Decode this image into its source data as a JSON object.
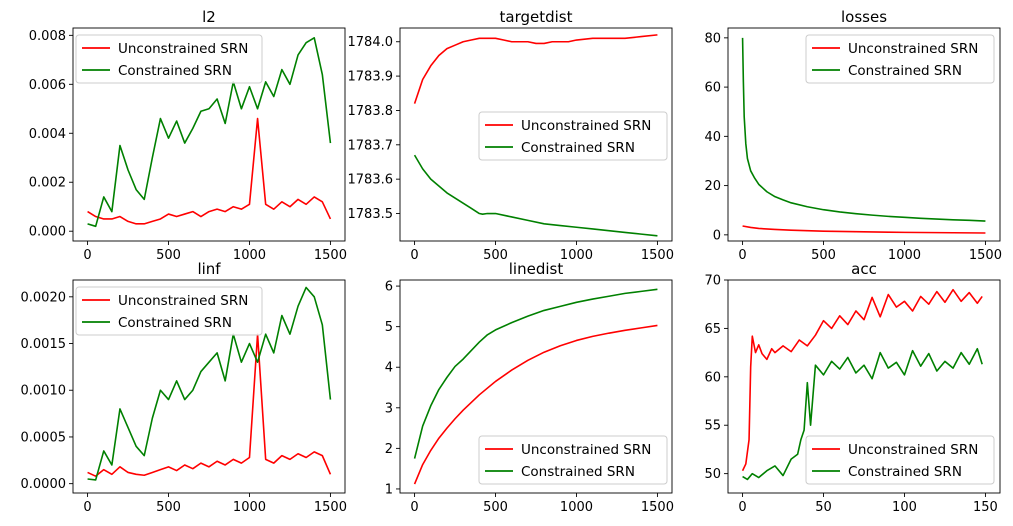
{
  "colors": {
    "unconstrained": "#ff0000",
    "constrained": "#008000"
  },
  "chart_data": [
    {
      "id": "l2",
      "type": "line",
      "title": "l2",
      "xlabel": "",
      "ylabel": "",
      "xlim": [
        -90,
        1590
      ],
      "ylim": [
        -0.0004,
        0.0083
      ],
      "xticks": [
        0,
        500,
        1000,
        1500
      ],
      "yticks": [
        0.0,
        0.002,
        0.004,
        0.006,
        0.008
      ],
      "ytick_labels": [
        "0.000",
        "0.002",
        "0.004",
        "0.006",
        "0.008"
      ],
      "legend": "upper left",
      "grid": false,
      "series": [
        {
          "name": "Unconstrained SRN",
          "color": "#ff0000",
          "x": [
            0,
            50,
            100,
            150,
            200,
            250,
            300,
            350,
            400,
            450,
            500,
            550,
            600,
            650,
            700,
            750,
            800,
            850,
            900,
            950,
            1000,
            1050,
            1100,
            1150,
            1200,
            1250,
            1300,
            1350,
            1400,
            1450,
            1500
          ],
          "y": [
            0.0008,
            0.0006,
            0.0005,
            0.0005,
            0.0006,
            0.0004,
            0.0003,
            0.0003,
            0.0004,
            0.0005,
            0.0007,
            0.0006,
            0.0007,
            0.0008,
            0.0006,
            0.0008,
            0.0009,
            0.0008,
            0.001,
            0.0009,
            0.0011,
            0.0046,
            0.0011,
            0.0009,
            0.0012,
            0.001,
            0.0013,
            0.0011,
            0.0014,
            0.0012,
            0.0005
          ]
        },
        {
          "name": "Constrained SRN",
          "color": "#008000",
          "x": [
            0,
            50,
            100,
            150,
            200,
            250,
            300,
            350,
            400,
            450,
            500,
            550,
            600,
            650,
            700,
            750,
            800,
            850,
            900,
            950,
            1000,
            1050,
            1100,
            1150,
            1200,
            1250,
            1300,
            1350,
            1400,
            1450,
            1500
          ],
          "y": [
            0.0003,
            0.0002,
            0.0014,
            0.0008,
            0.0035,
            0.0025,
            0.0017,
            0.0013,
            0.003,
            0.0046,
            0.0038,
            0.0045,
            0.0036,
            0.0042,
            0.0049,
            0.005,
            0.0054,
            0.0044,
            0.0061,
            0.005,
            0.0059,
            0.005,
            0.0061,
            0.0055,
            0.0066,
            0.006,
            0.0072,
            0.0077,
            0.0079,
            0.0064,
            0.0036
          ]
        }
      ]
    },
    {
      "id": "targetdist",
      "type": "line",
      "title": "targetdist",
      "xlabel": "",
      "ylabel": "",
      "xlim": [
        -90,
        1590
      ],
      "ylim": [
        1783.42,
        1784.04
      ],
      "xticks": [
        0,
        500,
        1000,
        1500
      ],
      "yticks": [
        1783.5,
        1783.6,
        1783.7,
        1783.8,
        1783.9,
        1784.0
      ],
      "ytick_labels": [
        "1783.5",
        "1783.6",
        "1783.7",
        "1783.8",
        "1783.9",
        "1784.0"
      ],
      "legend": "center right",
      "grid": false,
      "series": [
        {
          "name": "Unconstrained SRN",
          "color": "#ff0000",
          "x": [
            0,
            50,
            100,
            150,
            200,
            250,
            300,
            350,
            400,
            450,
            500,
            550,
            600,
            650,
            700,
            750,
            800,
            850,
            900,
            950,
            1000,
            1100,
            1200,
            1300,
            1400,
            1500
          ],
          "y": [
            1783.82,
            1783.89,
            1783.93,
            1783.96,
            1783.98,
            1783.99,
            1784.0,
            1784.005,
            1784.01,
            1784.01,
            1784.01,
            1784.005,
            1784.0,
            1784.0,
            1784.0,
            1783.995,
            1783.995,
            1784.0,
            1784.0,
            1784.0,
            1784.005,
            1784.01,
            1784.01,
            1784.01,
            1784.015,
            1784.02
          ]
        },
        {
          "name": "Constrained SRN",
          "color": "#008000",
          "x": [
            0,
            50,
            100,
            150,
            200,
            250,
            300,
            350,
            400,
            420,
            450,
            500,
            600,
            700,
            800,
            900,
            1000,
            1100,
            1200,
            1300,
            1400,
            1500
          ],
          "y": [
            1783.67,
            1783.63,
            1783.6,
            1783.58,
            1783.56,
            1783.545,
            1783.53,
            1783.515,
            1783.5,
            1783.498,
            1783.5,
            1783.5,
            1783.49,
            1783.48,
            1783.47,
            1783.465,
            1783.46,
            1783.455,
            1783.45,
            1783.445,
            1783.44,
            1783.435
          ]
        }
      ]
    },
    {
      "id": "losses",
      "type": "line",
      "title": "losses",
      "xlabel": "",
      "ylabel": "",
      "xlim": [
        -90,
        1590
      ],
      "ylim": [
        -2.5,
        84
      ],
      "xticks": [
        0,
        500,
        1000,
        1500
      ],
      "yticks": [
        0,
        20,
        40,
        60,
        80
      ],
      "ytick_labels": [
        "0",
        "20",
        "40",
        "60",
        "80"
      ],
      "legend": "upper right",
      "grid": false,
      "series": [
        {
          "name": "Unconstrained SRN",
          "color": "#ff0000",
          "x": [
            0,
            50,
            100,
            200,
            300,
            400,
            500,
            600,
            700,
            800,
            900,
            1000,
            1100,
            1200,
            1300,
            1400,
            1500
          ],
          "y": [
            3.6,
            3.0,
            2.6,
            2.2,
            1.9,
            1.7,
            1.5,
            1.4,
            1.3,
            1.2,
            1.1,
            1.0,
            0.95,
            0.9,
            0.85,
            0.8,
            0.75
          ]
        },
        {
          "name": "Constrained SRN",
          "color": "#008000",
          "x": [
            0,
            5,
            10,
            20,
            30,
            50,
            75,
            100,
            150,
            200,
            250,
            300,
            400,
            500,
            600,
            700,
            800,
            900,
            1000,
            1100,
            1200,
            1300,
            1400,
            1500
          ],
          "y": [
            80,
            62,
            48,
            37,
            31,
            26,
            23,
            20.5,
            17.5,
            15.5,
            14.2,
            13.0,
            11.4,
            10.2,
            9.3,
            8.6,
            8.0,
            7.5,
            7.1,
            6.7,
            6.4,
            6.1,
            5.9,
            5.6
          ]
        }
      ]
    },
    {
      "id": "linf",
      "type": "line",
      "title": "linf",
      "xlabel": "",
      "ylabel": "",
      "xlim": [
        -90,
        1590
      ],
      "ylim": [
        -0.0001,
        0.00218
      ],
      "xticks": [
        0,
        500,
        1000,
        1500
      ],
      "yticks": [
        0.0,
        0.0005,
        0.001,
        0.0015,
        0.002
      ],
      "ytick_labels": [
        "0.0000",
        "0.0005",
        "0.0010",
        "0.0015",
        "0.0020"
      ],
      "legend": "upper left",
      "grid": false,
      "series": [
        {
          "name": "Unconstrained SRN",
          "color": "#ff0000",
          "x": [
            0,
            50,
            100,
            150,
            200,
            250,
            300,
            350,
            400,
            450,
            500,
            550,
            600,
            650,
            700,
            750,
            800,
            850,
            900,
            950,
            1000,
            1050,
            1100,
            1150,
            1200,
            1250,
            1300,
            1350,
            1400,
            1450,
            1500
          ],
          "y": [
            0.00012,
            8e-05,
            0.00015,
            0.0001,
            0.00018,
            0.00012,
            0.0001,
            9e-05,
            0.00012,
            0.00015,
            0.00018,
            0.00014,
            0.0002,
            0.00016,
            0.00022,
            0.00018,
            0.00024,
            0.0002,
            0.00026,
            0.00022,
            0.00028,
            0.0016,
            0.00026,
            0.00022,
            0.0003,
            0.00026,
            0.00032,
            0.00028,
            0.00034,
            0.0003,
            0.0001
          ]
        },
        {
          "name": "Constrained SRN",
          "color": "#008000",
          "x": [
            0,
            50,
            100,
            150,
            200,
            250,
            300,
            350,
            400,
            450,
            500,
            550,
            600,
            650,
            700,
            750,
            800,
            850,
            900,
            950,
            1000,
            1050,
            1100,
            1150,
            1200,
            1250,
            1300,
            1350,
            1400,
            1450,
            1500
          ],
          "y": [
            5e-05,
            4e-05,
            0.00035,
            0.0002,
            0.0008,
            0.0006,
            0.0004,
            0.0003,
            0.0007,
            0.001,
            0.0009,
            0.0011,
            0.0009,
            0.001,
            0.0012,
            0.0013,
            0.0014,
            0.0011,
            0.0016,
            0.0013,
            0.0015,
            0.0013,
            0.0016,
            0.0014,
            0.0018,
            0.0016,
            0.0019,
            0.0021,
            0.002,
            0.0017,
            0.0009
          ]
        }
      ]
    },
    {
      "id": "linedist",
      "type": "line",
      "title": "linedist",
      "xlabel": "",
      "ylabel": "",
      "xlim": [
        -90,
        1590
      ],
      "ylim": [
        0.9,
        6.15
      ],
      "xticks": [
        0,
        500,
        1000,
        1500
      ],
      "yticks": [
        1,
        2,
        3,
        4,
        5,
        6
      ],
      "ytick_labels": [
        "1",
        "2",
        "3",
        "4",
        "5",
        "6"
      ],
      "legend": "lower right",
      "grid": false,
      "series": [
        {
          "name": "Unconstrained SRN",
          "color": "#ff0000",
          "x": [
            0,
            50,
            100,
            150,
            200,
            250,
            300,
            400,
            500,
            600,
            700,
            800,
            900,
            1000,
            1100,
            1200,
            1300,
            1400,
            1500
          ],
          "y": [
            1.12,
            1.6,
            1.95,
            2.25,
            2.5,
            2.73,
            2.94,
            3.32,
            3.65,
            3.93,
            4.17,
            4.37,
            4.53,
            4.66,
            4.76,
            4.84,
            4.91,
            4.97,
            5.03
          ]
        },
        {
          "name": "Constrained SRN",
          "color": "#008000",
          "x": [
            0,
            50,
            100,
            150,
            200,
            250,
            300,
            400,
            450,
            500,
            600,
            700,
            800,
            900,
            1000,
            1100,
            1200,
            1300,
            1400,
            1500
          ],
          "y": [
            1.75,
            2.55,
            3.05,
            3.45,
            3.75,
            4.02,
            4.2,
            4.62,
            4.8,
            4.92,
            5.1,
            5.26,
            5.4,
            5.5,
            5.6,
            5.68,
            5.75,
            5.82,
            5.87,
            5.92
          ]
        }
      ]
    },
    {
      "id": "acc",
      "type": "line",
      "title": "acc",
      "xlabel": "",
      "ylabel": "",
      "xlim": [
        -9,
        159
      ],
      "ylim": [
        48.0,
        70.0
      ],
      "xticks": [
        0,
        50,
        100,
        150
      ],
      "yticks": [
        50,
        55,
        60,
        65,
        70
      ],
      "ytick_labels": [
        "50",
        "55",
        "60",
        "65",
        "70"
      ],
      "legend": "lower right",
      "grid": false,
      "series": [
        {
          "name": "Unconstrained SRN",
          "color": "#ff0000",
          "x": [
            0,
            2,
            4,
            5,
            6,
            8,
            10,
            12,
            15,
            18,
            20,
            25,
            30,
            35,
            40,
            45,
            50,
            55,
            60,
            65,
            70,
            75,
            80,
            85,
            90,
            95,
            100,
            105,
            110,
            115,
            120,
            125,
            130,
            135,
            140,
            145,
            148
          ],
          "y": [
            50.3,
            51,
            53.5,
            61,
            64.2,
            62.5,
            63.3,
            62.4,
            61.8,
            62.9,
            62.5,
            63.2,
            62.6,
            63.8,
            63.2,
            64.3,
            65.8,
            65,
            66.3,
            65.4,
            66.8,
            65.9,
            68.2,
            66.2,
            68.5,
            67.2,
            67.8,
            66.8,
            68.3,
            67.5,
            68.8,
            67.7,
            69,
            67.8,
            68.7,
            67.6,
            68.3
          ]
        },
        {
          "name": "Constrained SRN",
          "color": "#008000",
          "x": [
            0,
            3,
            6,
            10,
            15,
            20,
            25,
            30,
            34,
            36,
            38,
            40,
            42,
            45,
            50,
            55,
            60,
            65,
            70,
            75,
            80,
            85,
            90,
            95,
            100,
            105,
            110,
            115,
            120,
            125,
            130,
            135,
            140,
            145,
            148
          ],
          "y": [
            49.7,
            49.4,
            50,
            49.6,
            50.3,
            50.8,
            49.8,
            51.5,
            52,
            53.5,
            54.5,
            59.4,
            55,
            61.2,
            60.2,
            61.6,
            60.8,
            62.0,
            60.4,
            61.2,
            59.8,
            62.5,
            60.9,
            61.5,
            60.2,
            62.7,
            61.1,
            62.4,
            60.6,
            61.6,
            60.9,
            62.5,
            61.3,
            62.9,
            61.3
          ]
        }
      ]
    }
  ]
}
